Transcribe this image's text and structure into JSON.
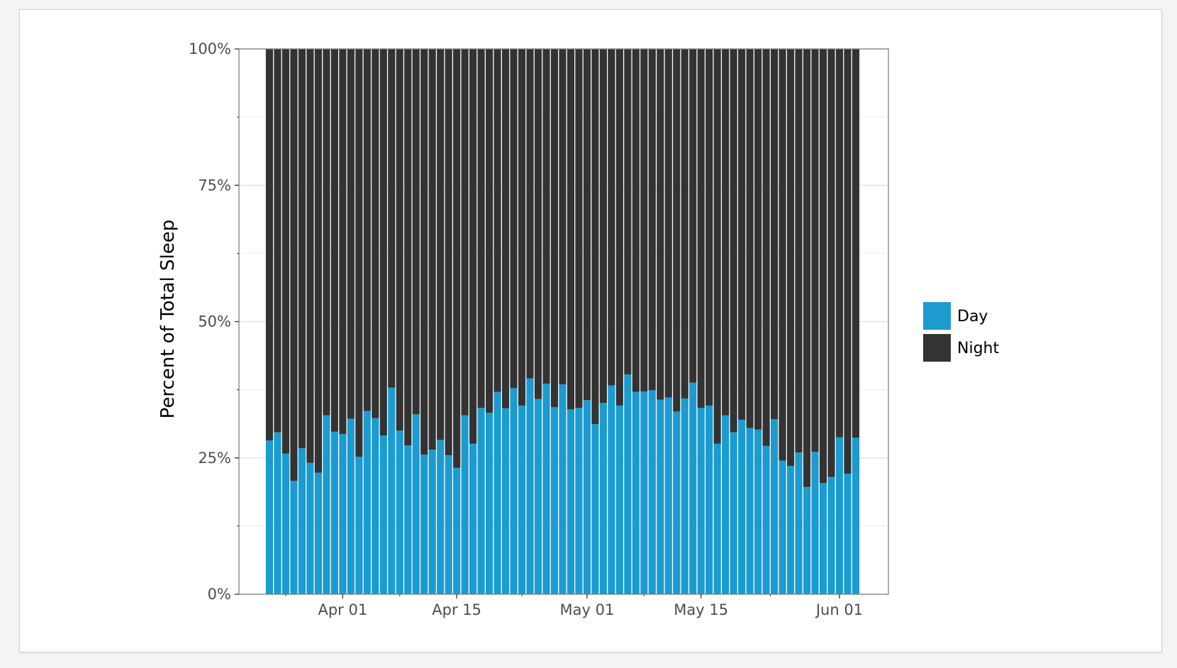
{
  "chart_data": {
    "type": "bar",
    "stacked": true,
    "percent": true,
    "xlabel": "",
    "ylabel": "Percent of Total Sleep",
    "ylim": [
      0,
      100
    ],
    "yticks": [
      "0%",
      "25%",
      "50%",
      "75%",
      "100%"
    ],
    "xticks": [
      "Apr 01",
      "Apr 15",
      "May 01",
      "May 15",
      "Jun 01"
    ],
    "x_start": "2020-03-23",
    "x_end": "2020-06-04",
    "grid": true,
    "legend_position": "right",
    "series": [
      {
        "name": "Day",
        "color": "#1b9bd0",
        "values": [
          28.2,
          29.7,
          25.8,
          20.8,
          26.8,
          24.1,
          22.3,
          32.8,
          29.8,
          29.4,
          32.2,
          25.2,
          33.6,
          32.3,
          29.1,
          37.9,
          30.0,
          27.3,
          33.0,
          25.6,
          26.5,
          28.3,
          25.5,
          23.2,
          32.8,
          27.6,
          34.2,
          33.3,
          37.1,
          34.1,
          37.8,
          34.6,
          39.6,
          35.8,
          38.6,
          34.3,
          38.5,
          33.9,
          34.2,
          35.6,
          31.2,
          35.1,
          38.3,
          34.6,
          40.3,
          37.1,
          37.2,
          37.4,
          35.7,
          36.1,
          33.5,
          35.9,
          38.8,
          34.2,
          34.6,
          27.6,
          32.8,
          29.7,
          32.0,
          30.5,
          30.2,
          27.2,
          32.1,
          24.5,
          23.5,
          26.0,
          19.7,
          26.1,
          20.4,
          21.5,
          28.8,
          22.1,
          28.7
        ]
      },
      {
        "name": "Night",
        "color": "#333333",
        "values": [
          71.8,
          70.3,
          74.2,
          79.2,
          73.2,
          75.9,
          77.7,
          67.2,
          70.2,
          70.6,
          67.8,
          74.8,
          66.4,
          67.7,
          70.9,
          62.1,
          70.0,
          72.7,
          67.0,
          74.4,
          73.5,
          71.7,
          74.5,
          76.8,
          67.2,
          72.4,
          65.8,
          66.7,
          62.9,
          65.9,
          62.2,
          65.4,
          60.4,
          64.2,
          61.4,
          65.7,
          61.5,
          66.1,
          65.8,
          64.4,
          68.8,
          64.9,
          61.7,
          65.4,
          59.7,
          62.9,
          62.8,
          62.6,
          64.3,
          63.9,
          66.5,
          64.1,
          61.2,
          65.8,
          65.4,
          72.4,
          67.2,
          70.3,
          68.0,
          69.5,
          69.8,
          72.8,
          67.9,
          75.5,
          76.5,
          74.0,
          80.3,
          73.9,
          79.6,
          78.5,
          71.2,
          77.9,
          71.3
        ]
      }
    ]
  }
}
